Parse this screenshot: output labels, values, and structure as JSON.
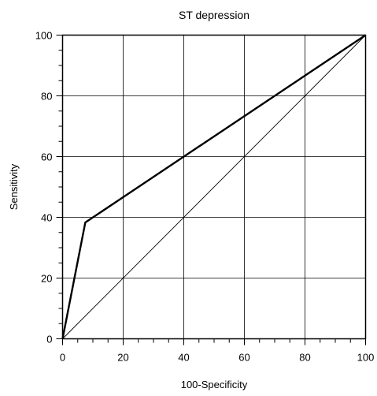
{
  "chart_data": {
    "type": "line",
    "title": "ST depression",
    "xlabel": "100-Specificity",
    "ylabel": "Sensitivity",
    "xlim": [
      0,
      100
    ],
    "ylim": [
      0,
      100
    ],
    "x_ticks": [
      "0",
      "20",
      "40",
      "60",
      "80",
      "100"
    ],
    "y_ticks": [
      "0",
      "20",
      "40",
      "60",
      "80",
      "100"
    ],
    "grid": true,
    "series": [
      {
        "style": "thick",
        "color": "#000000",
        "x": [
          0,
          7.5,
          100
        ],
        "y": [
          0,
          38.3,
          100
        ]
      },
      {
        "style": "thin-diagonal",
        "color": "#000000",
        "x": [
          0,
          100
        ],
        "y": [
          0,
          100
        ]
      }
    ]
  }
}
